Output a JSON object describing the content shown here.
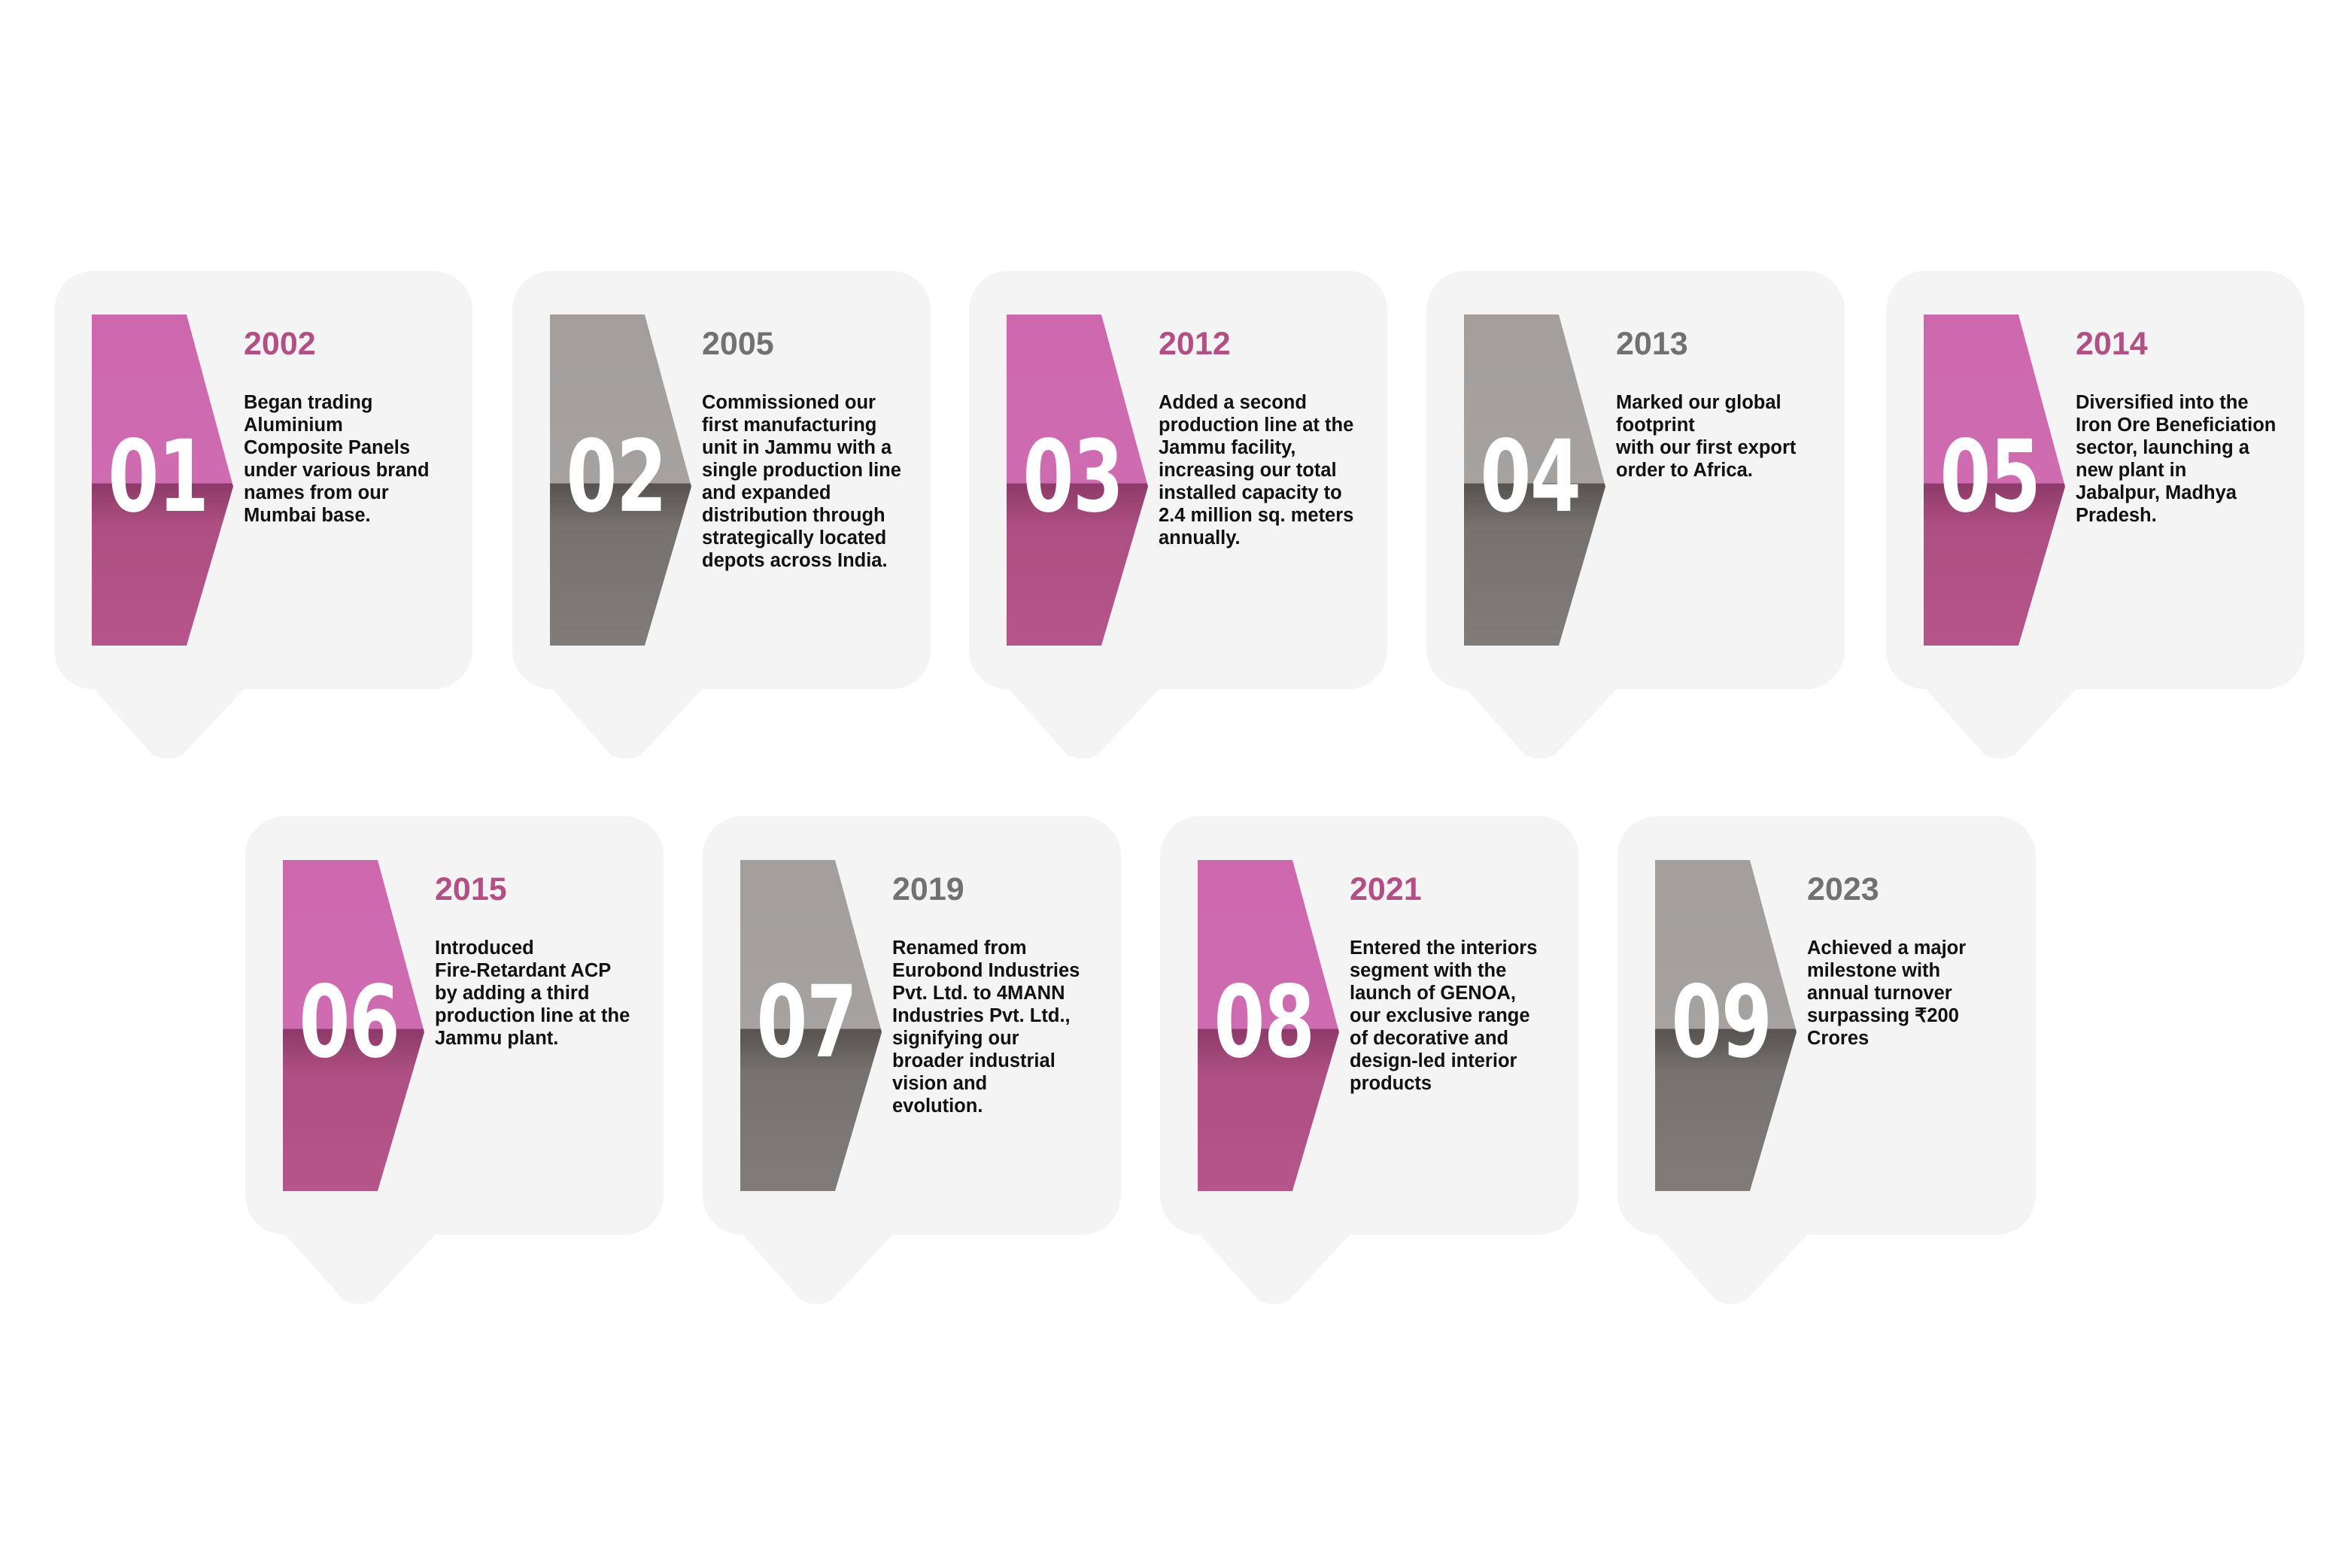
{
  "milestones": [
    {
      "number": "01",
      "year": "2002",
      "theme": "pink",
      "description": "Began trading\nAluminium\nComposite Panels\nunder various brand\nnames from our\nMumbai base."
    },
    {
      "number": "02",
      "year": "2005",
      "theme": "grey",
      "description": "Commissioned our\nfirst manufacturing\nunit in Jammu with a\nsingle production line\nand expanded\ndistribution through\nstrategically located\ndepots across India."
    },
    {
      "number": "03",
      "year": "2012",
      "theme": "pink",
      "description": "Added a second\nproduction line at the\nJammu facility,\nincreasing our total\ninstalled capacity to\n2.4 million sq. meters\nannually."
    },
    {
      "number": "04",
      "year": "2013",
      "theme": "grey",
      "description": "Marked our global\nfootprint\nwith our first export\norder to Africa."
    },
    {
      "number": "05",
      "year": "2014",
      "theme": "pink",
      "description": "Diversified into the\nIron Ore Beneficiation\nsector, launching a\nnew plant in\nJabalpur, Madhya\nPradesh."
    },
    {
      "number": "06",
      "year": "2015",
      "theme": "pink",
      "description": "Introduced\nFire-Retardant ACP\nby adding a third\nproduction line at the\nJammu plant."
    },
    {
      "number": "07",
      "year": "2019",
      "theme": "grey",
      "description": "Renamed from\nEurobond Industries\nPvt. Ltd. to 4MANN\nIndustries Pvt. Ltd.,\nsignifying our\nbroader industrial\nvision and\nevolution."
    },
    {
      "number": "08",
      "year": "2021",
      "theme": "pink",
      "description": "Entered the interiors\nsegment with the\nlaunch of GENOA,\nour exclusive range\nof decorative and\ndesign-led interior\nproducts"
    },
    {
      "number": "09",
      "year": "2023",
      "theme": "grey",
      "description": "Achieved a major\nmilestone with\nannual turnover\nsurpassing ₹200\nCrores"
    }
  ],
  "colors": {
    "pink_accent": "#b24f84",
    "grey_accent": "#727070",
    "card_background": "#f4f4f4"
  }
}
